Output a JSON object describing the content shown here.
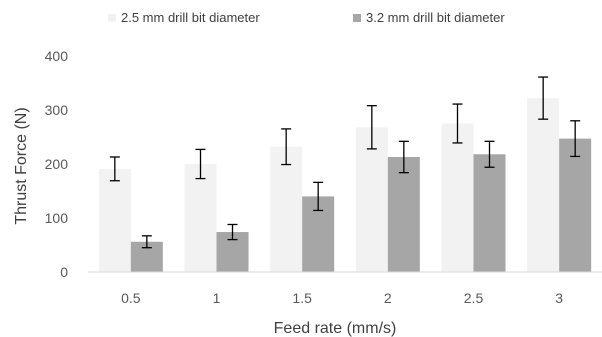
{
  "chart_data": {
    "type": "bar",
    "categories": [
      "0.5",
      "1",
      "1.5",
      "2",
      "2.5",
      "3"
    ],
    "series": [
      {
        "name": "2.5 mm drill bit diameter",
        "values": [
          191,
          200,
          232,
          268,
          275,
          322
        ],
        "error": [
          22,
          27,
          33,
          40,
          36,
          39
        ],
        "color": "#f2f2f2"
      },
      {
        "name": "3.2 mm drill bit diameter",
        "values": [
          56,
          74,
          140,
          213,
          218,
          247
        ],
        "error": [
          11,
          14,
          26,
          29,
          24,
          33
        ],
        "color": "#a6a6a6"
      }
    ],
    "xlabel": "Feed rate (mm/s)",
    "ylabel": "Thrust Force (N)",
    "ylim": [
      0,
      400
    ],
    "yticks": [
      "0",
      "100",
      "200",
      "300",
      "400"
    ],
    "grid": false,
    "legend_position": "top"
  }
}
